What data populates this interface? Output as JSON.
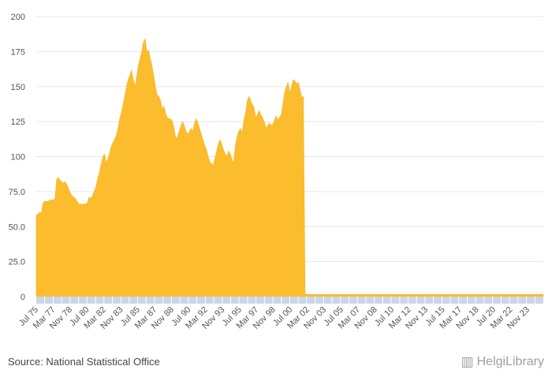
{
  "chart_data": {
    "type": "area",
    "color": "#fbbd2e",
    "axis_band_color": "#ccd6eb",
    "ylim": [
      0,
      200
    ],
    "y_ticks": [
      "0",
      "25.0",
      "50.0",
      "75.0",
      "100",
      "125",
      "150",
      "175",
      "200"
    ],
    "x_tick_labels": [
      "Jul 75",
      "Mar 77",
      "Nov 78",
      "Jul 80",
      "Mar 82",
      "Nov 83",
      "Jul 85",
      "Mar 87",
      "Nov 88",
      "Jul 90",
      "Mar 92",
      "Nov 93",
      "Jul 95",
      "Mar 97",
      "Nov 98",
      "Jul 00",
      "Mar 02",
      "Nov 03",
      "Jul 05",
      "Mar 07",
      "Nov 08",
      "Jul 10",
      "Mar 12",
      "Nov 13",
      "Jul 15",
      "Mar 17",
      "Nov 18",
      "Jul 20",
      "Mar 22",
      "Nov 23"
    ],
    "values": [
      58,
      59,
      60,
      60,
      67,
      68,
      68,
      68,
      69,
      69,
      69,
      70,
      84,
      85,
      83,
      82,
      81,
      82,
      80,
      77,
      74,
      72,
      71,
      70,
      68,
      66,
      66,
      66,
      66,
      66,
      67,
      71,
      70,
      72,
      75,
      78,
      84,
      88,
      94,
      99,
      102,
      96,
      98,
      102,
      107,
      110,
      112,
      115,
      120,
      127,
      131,
      137,
      143,
      150,
      155,
      158,
      162,
      155,
      150,
      157,
      165,
      170,
      175,
      182,
      184,
      175,
      176,
      170,
      165,
      158,
      150,
      144,
      143,
      140,
      134,
      136,
      131,
      128,
      127,
      127,
      125,
      120,
      113,
      114,
      118,
      122,
      125,
      122,
      118,
      116,
      118,
      120,
      118,
      124,
      127,
      124,
      120,
      116,
      112,
      108,
      105,
      100,
      96,
      95,
      94,
      99,
      104,
      109,
      112,
      109,
      105,
      102,
      100,
      104,
      102,
      98,
      95,
      108,
      114,
      118,
      120,
      117,
      126,
      131,
      140,
      143,
      140,
      137,
      135,
      128,
      130,
      133,
      130,
      128,
      125,
      120,
      122,
      124,
      122,
      123,
      126,
      129,
      126,
      128,
      130,
      138,
      146,
      150,
      153,
      145,
      150,
      155,
      154,
      152,
      153,
      148,
      142,
      143,
      1.5,
      1.5,
      1.5,
      1.5,
      1.5,
      1.5,
      1.5,
      1.5,
      1.5,
      1.5,
      1.5,
      1.5,
      1.5,
      1.5,
      1.5,
      1.5,
      1.5,
      1.5,
      1.5,
      1.5,
      1.5,
      1.5,
      1.5,
      1.5,
      1.5,
      1.5,
      1.5,
      1.5,
      1.5,
      1.5,
      1.5,
      1.5,
      1.5,
      1.5,
      1.5,
      1.5,
      1.5,
      1.5,
      1.5,
      1.5,
      1.5,
      1.5,
      1.5,
      1.5,
      1.5,
      1.5,
      1.5,
      1.5,
      1.5,
      1.5,
      1.5,
      1.5,
      1.5,
      1.5,
      1.5,
      1.5,
      1.5,
      1.5,
      1.5,
      1.5,
      1.5,
      1.5,
      1.5,
      1.5,
      1.5,
      1.5,
      1.5,
      1.5,
      1.5,
      1.5,
      1.5,
      1.5,
      1.5,
      1.5,
      1.5,
      1.5,
      1.5,
      1.5,
      1.5,
      1.5,
      1.5,
      1.5,
      1.5,
      1.5,
      1.5,
      1.5,
      1.5,
      1.5,
      1.5,
      1.5,
      1.5,
      1.5,
      1.5,
      1.5,
      1.5,
      1.5,
      1.5,
      1.5,
      1.5,
      1.5,
      1.5,
      1.5,
      1.5,
      1.5,
      1.5,
      1.5,
      1.5,
      1.5,
      1.5,
      1.5,
      1.5,
      1.5,
      1.5,
      1.5,
      1.5,
      1.5,
      1.5,
      1.5,
      1.5,
      1.5,
      1.5,
      1.5,
      1.5,
      1.5,
      1.5,
      1.5,
      1.5,
      1.5,
      1.5,
      1.5,
      1.5,
      1.5,
      1.5,
      1.5,
      1.5,
      1.5,
      1.5,
      1.5,
      1.5,
      1.5,
      1.5
    ]
  },
  "footer": {
    "source": "Source: National Statistical Office",
    "brand": "HelgiLibrary"
  }
}
